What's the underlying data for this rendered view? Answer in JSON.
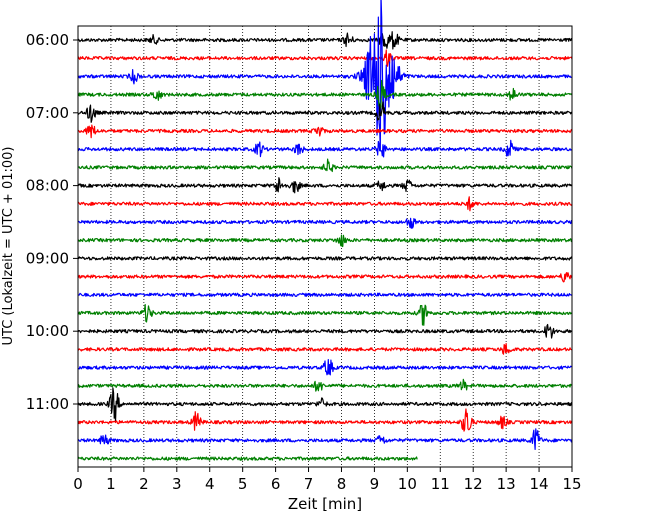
{
  "chart_data": {
    "type": "line",
    "xlabel": "Zeit  [min]",
    "ylabel": "UTC (Lokalzeit = UTC + 01:00)",
    "xlim": [
      0,
      15
    ],
    "x_ticks": [
      "0",
      "1",
      "2",
      "3",
      "4",
      "5",
      "6",
      "7",
      "8",
      "9",
      "10",
      "11",
      "12",
      "13",
      "14",
      "15"
    ],
    "y_ticks": [
      {
        "label": "06:00",
        "row": 0
      },
      {
        "label": "07:00",
        "row": 4
      },
      {
        "label": "08:00",
        "row": 8
      },
      {
        "label": "09:00",
        "row": 12
      },
      {
        "label": "10:00",
        "row": 16
      },
      {
        "label": "11:00",
        "row": 20
      }
    ],
    "grid": "vertical dotted",
    "row_minutes": 15,
    "row_colors": [
      "#000000",
      "#ff0000",
      "#0000ff",
      "#008000"
    ],
    "traces": [
      {
        "row": 0,
        "color": "black",
        "end": 15,
        "events": [
          [
            2.3,
            4
          ],
          [
            8.2,
            7
          ],
          [
            9.3,
            12
          ],
          [
            9.6,
            9
          ]
        ]
      },
      {
        "row": 1,
        "color": "red",
        "end": 15,
        "events": [
          [
            9.4,
            8
          ]
        ]
      },
      {
        "row": 2,
        "color": "blue",
        "end": 15,
        "events": [
          [
            1.7,
            6
          ],
          [
            9.1,
            46
          ],
          [
            9.3,
            40
          ]
        ]
      },
      {
        "row": 3,
        "color": "green",
        "end": 15,
        "events": [
          [
            2.4,
            6
          ],
          [
            9.2,
            14
          ],
          [
            13.2,
            6
          ]
        ]
      },
      {
        "row": 4,
        "color": "black",
        "end": 15,
        "events": [
          [
            0.4,
            9
          ],
          [
            9.2,
            12
          ]
        ]
      },
      {
        "row": 5,
        "color": "red",
        "end": 15,
        "events": [
          [
            0.4,
            7
          ],
          [
            7.3,
            6
          ]
        ]
      },
      {
        "row": 6,
        "color": "blue",
        "end": 15,
        "events": [
          [
            5.5,
            7
          ],
          [
            6.7,
            6
          ],
          [
            9.2,
            10
          ],
          [
            13.1,
            9
          ]
        ]
      },
      {
        "row": 7,
        "color": "green",
        "end": 15,
        "events": [
          [
            7.6,
            7
          ]
        ]
      },
      {
        "row": 8,
        "color": "black",
        "end": 15,
        "events": [
          [
            6.1,
            8
          ],
          [
            6.6,
            7
          ],
          [
            9.2,
            5
          ],
          [
            10.0,
            6
          ]
        ]
      },
      {
        "row": 9,
        "color": "red",
        "end": 15,
        "events": [
          [
            11.9,
            6
          ]
        ]
      },
      {
        "row": 10,
        "color": "blue",
        "end": 15,
        "events": [
          [
            10.1,
            6
          ]
        ]
      },
      {
        "row": 11,
        "color": "green",
        "end": 15,
        "events": [
          [
            8.0,
            6
          ]
        ]
      },
      {
        "row": 12,
        "color": "black",
        "end": 15,
        "events": []
      },
      {
        "row": 13,
        "color": "red",
        "end": 15,
        "events": [
          [
            14.8,
            6
          ]
        ]
      },
      {
        "row": 14,
        "color": "blue",
        "end": 15,
        "events": []
      },
      {
        "row": 15,
        "color": "green",
        "end": 15,
        "events": [
          [
            2.1,
            9
          ],
          [
            10.5,
            12
          ]
        ]
      },
      {
        "row": 16,
        "color": "black",
        "end": 15,
        "events": [
          [
            14.3,
            9
          ]
        ]
      },
      {
        "row": 17,
        "color": "red",
        "end": 15,
        "events": [
          [
            13.0,
            6
          ]
        ]
      },
      {
        "row": 18,
        "color": "blue",
        "end": 15,
        "events": [
          [
            7.6,
            10
          ]
        ]
      },
      {
        "row": 19,
        "color": "green",
        "end": 15,
        "events": [
          [
            7.3,
            6
          ],
          [
            11.7,
            5
          ]
        ]
      },
      {
        "row": 20,
        "color": "black",
        "end": 15,
        "events": [
          [
            1.1,
            18
          ],
          [
            7.4,
            5
          ]
        ]
      },
      {
        "row": 21,
        "color": "red",
        "end": 15,
        "events": [
          [
            3.6,
            10
          ],
          [
            11.8,
            18
          ],
          [
            12.9,
            6
          ]
        ]
      },
      {
        "row": 22,
        "color": "blue",
        "end": 15,
        "events": [
          [
            0.8,
            6
          ],
          [
            9.2,
            5
          ],
          [
            13.9,
            12
          ]
        ]
      },
      {
        "row": 23,
        "color": "green",
        "end": 10.3,
        "events": []
      }
    ]
  }
}
